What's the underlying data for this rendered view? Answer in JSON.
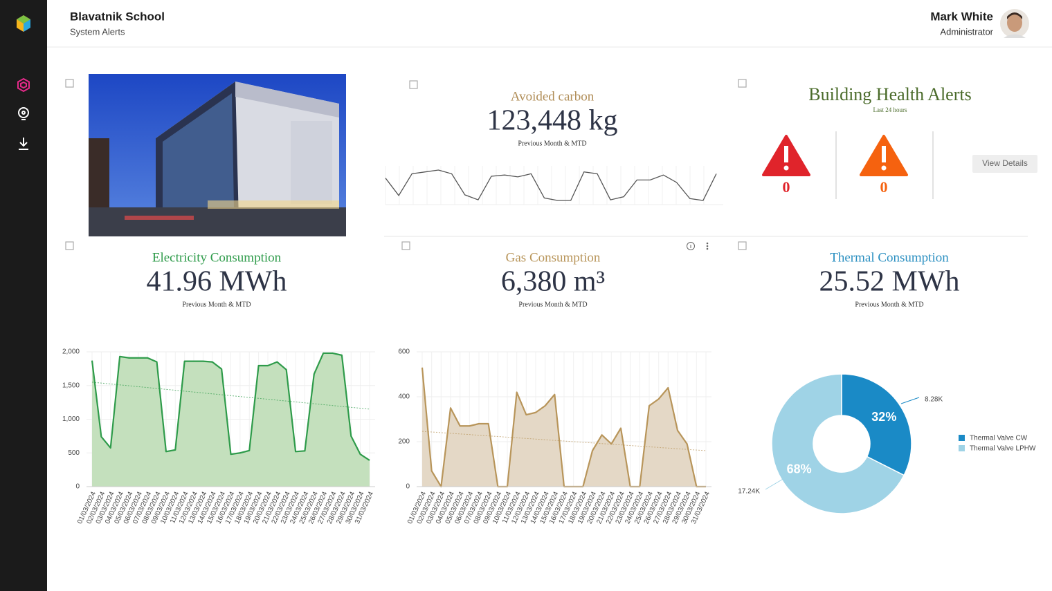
{
  "header": {
    "title": "Blavatnik School",
    "subtitle": "System Alerts"
  },
  "user": {
    "name": "Mark White",
    "role": "Administrator"
  },
  "alerts": {
    "title": "Building Health Alerts",
    "subtitle": "Last 24 hours",
    "items": [
      {
        "count": 0,
        "color": "#e0242b"
      },
      {
        "count": 0,
        "color": "#f5620f"
      }
    ],
    "button": "View Details"
  },
  "chart_data": [
    {
      "type": "sparkline",
      "title": "Avoided carbon",
      "headline": "123,448 kg",
      "subtitle": "Previous Month & MTD",
      "color": "#555",
      "values": [
        45,
        17,
        52,
        55,
        58,
        52,
        18,
        10,
        48,
        50,
        47,
        52,
        13,
        9,
        9,
        55,
        52,
        10,
        15,
        42,
        42,
        50,
        38,
        12,
        9,
        52
      ]
    },
    {
      "type": "area",
      "title": "Electricity Consumption",
      "headline": "41.96 MWh",
      "subtitle": "Previous Month & MTD",
      "color": "#2e9b4a",
      "fill": "#c4e0bd",
      "categories": [
        "01/03/2024",
        "02/03/2024",
        "03/03/2024",
        "04/03/2024",
        "05/03/2024",
        "06/03/2024",
        "07/03/2024",
        "08/03/2024",
        "09/03/2024",
        "10/03/2024",
        "11/03/2024",
        "12/03/2024",
        "13/03/2024",
        "14/03/2024",
        "15/03/2024",
        "16/03/2024",
        "17/03/2024",
        "18/03/2024",
        "19/03/2024",
        "20/03/2024",
        "21/03/2024",
        "22/03/2024",
        "23/03/2024",
        "24/03/2024",
        "25/03/2024",
        "26/03/2024",
        "27/03/2024",
        "28/03/2024",
        "29/03/2024",
        "30/03/2024",
        "31/03/2024"
      ],
      "values": [
        1870,
        740,
        575,
        1930,
        1910,
        1910,
        1910,
        1850,
        520,
        545,
        1860,
        1860,
        1860,
        1850,
        1745,
        480,
        500,
        535,
        1795,
        1795,
        1850,
        1735,
        520,
        530,
        1670,
        1980,
        1980,
        1950,
        750,
        480,
        390
      ],
      "trendline": [
        1550,
        1150
      ],
      "ylim": [
        0,
        2000
      ],
      "yticks": [
        0,
        500,
        {
          "value": 1000,
          "label": "1,000"
        },
        {
          "value": 1500,
          "label": "1,500"
        },
        {
          "value": 2000,
          "label": "2,000"
        }
      ]
    },
    {
      "type": "area",
      "title": "Gas Consumption",
      "headline": "6,380 m³",
      "subtitle": "Previous Month & MTD",
      "color": "#b8955a",
      "fill": "#e4d8c6",
      "categories": [
        "01/03/2024",
        "02/03/2024",
        "03/03/2024",
        "04/03/2024",
        "05/03/2024",
        "06/03/2024",
        "07/03/2024",
        "08/03/2024",
        "09/03/2024",
        "10/03/2024",
        "11/03/2024",
        "12/03/2024",
        "13/03/2024",
        "14/03/2024",
        "15/03/2024",
        "16/03/2024",
        "17/03/2024",
        "18/03/2024",
        "19/03/2024",
        "20/03/2024",
        "21/03/2024",
        "22/03/2024",
        "23/03/2024",
        "24/03/2024",
        "25/03/2024",
        "26/03/2024",
        "27/03/2024",
        "28/03/2024",
        "29/03/2024",
        "30/03/2024",
        "31/03/2024"
      ],
      "values": [
        530,
        70,
        0,
        350,
        270,
        270,
        280,
        280,
        0,
        0,
        420,
        320,
        330,
        360,
        410,
        0,
        0,
        0,
        160,
        230,
        190,
        260,
        0,
        0,
        360,
        390,
        440,
        250,
        190,
        0,
        0
      ],
      "trendline": [
        246,
        160
      ],
      "ylim": [
        0,
        600
      ],
      "yticks": [
        0,
        200,
        400,
        600
      ]
    },
    {
      "type": "donut",
      "title": "Thermal Consumption",
      "headline": "25.52 MWh",
      "subtitle": "Previous Month & MTD",
      "categories": [
        "Thermal Valve CW",
        "Thermal Valve LPHW"
      ],
      "values": [
        8280,
        17240
      ],
      "value_labels": [
        "8.28K",
        "17.24K"
      ],
      "percent_labels": [
        "32%",
        "68%"
      ],
      "colors": [
        "#1a8ac6",
        "#9fd3e6"
      ]
    }
  ]
}
